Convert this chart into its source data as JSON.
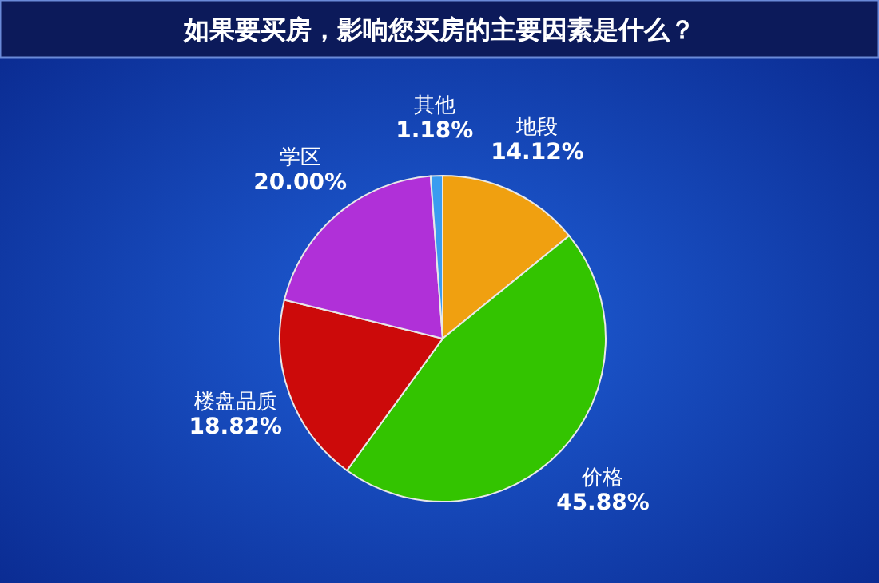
{
  "chart_data": {
    "type": "pie",
    "title": "如果要买房，影响您买房的主要因素是什么？",
    "categories": [
      "地段",
      "价格",
      "楼盘品质",
      "学区",
      "其他"
    ],
    "values": [
      14.12,
      45.88,
      18.82,
      20.0,
      1.18
    ],
    "value_labels": [
      "14.12%",
      "45.88%",
      "18.82%",
      "20.00%",
      "1.18%"
    ],
    "colors": [
      "#f0a010",
      "#33c400",
      "#cc0a0a",
      "#b030d8",
      "#3a9cf0"
    ]
  }
}
